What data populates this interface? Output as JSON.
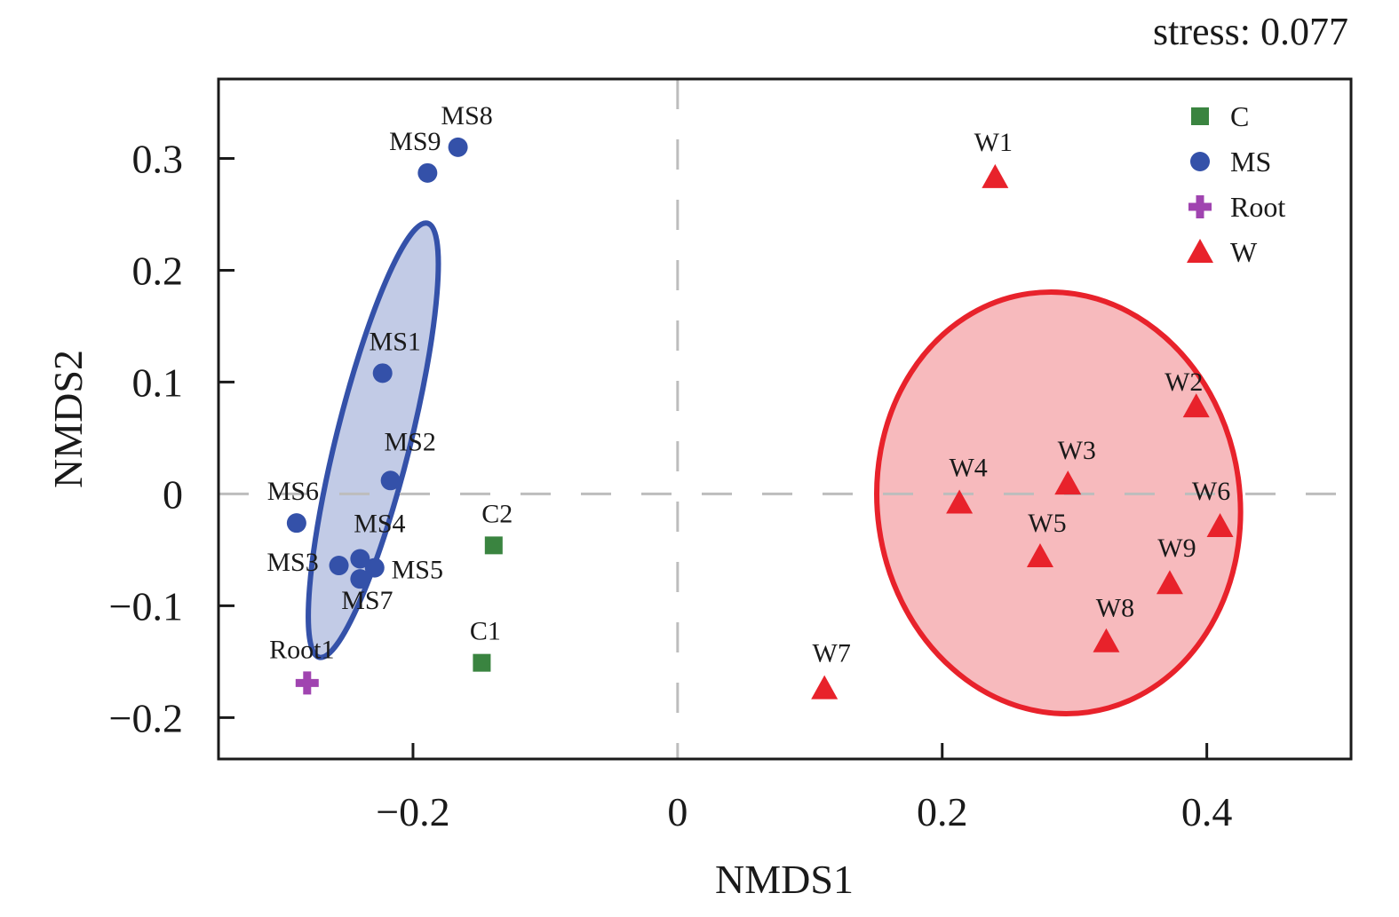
{
  "chart_data": {
    "type": "scatter",
    "title": "",
    "annotation": "stress: 0.077",
    "xlabel": "NMDS1",
    "ylabel": "NMDS2",
    "xlim": [
      -0.347,
      0.509
    ],
    "ylim": [
      -0.237,
      0.371
    ],
    "xticks": [
      -0.2,
      0,
      0.2,
      0.4
    ],
    "xtick_labels": [
      "−0.2",
      "0",
      "0.2",
      "0.4"
    ],
    "yticks": [
      -0.2,
      -0.1,
      0,
      0.1,
      0.2,
      0.3
    ],
    "ytick_labels": [
      "−0.2",
      "−0.1",
      "0",
      "0.1",
      "0.2",
      "0.3"
    ],
    "reference_lines": {
      "x": 0,
      "y": 0,
      "style": "dashed"
    },
    "grid": false,
    "legend_position": "top-right",
    "groups": [
      {
        "name": "C",
        "marker": "square",
        "color": "#3a8440"
      },
      {
        "name": "MS",
        "marker": "circle",
        "color": "#3451a9"
      },
      {
        "name": "Root",
        "marker": "plus",
        "color": "#a044b0"
      },
      {
        "name": "W",
        "marker": "triangle",
        "color": "#e8222b"
      }
    ],
    "series": [
      {
        "name": "C",
        "points": [
          {
            "label": "C1",
            "x": -0.148,
            "y": -0.151
          },
          {
            "label": "C2",
            "x": -0.139,
            "y": -0.046
          }
        ]
      },
      {
        "name": "MS",
        "points": [
          {
            "label": "MS1",
            "x": -0.223,
            "y": 0.108
          },
          {
            "label": "MS2",
            "x": -0.217,
            "y": 0.012
          },
          {
            "label": "MS3",
            "x": -0.256,
            "y": -0.064
          },
          {
            "label": "MS4",
            "x": -0.24,
            "y": -0.058
          },
          {
            "label": "MS5",
            "x": -0.229,
            "y": -0.066
          },
          {
            "label": "MS6",
            "x": -0.288,
            "y": -0.026
          },
          {
            "label": "MS7",
            "x": -0.24,
            "y": -0.076
          },
          {
            "label": "MS8",
            "x": -0.166,
            "y": 0.31
          },
          {
            "label": "MS9",
            "x": -0.189,
            "y": 0.287
          }
        ]
      },
      {
        "name": "Root",
        "points": [
          {
            "label": "Root1",
            "x": -0.28,
            "y": -0.169
          }
        ]
      },
      {
        "name": "W",
        "points": [
          {
            "label": "W1",
            "x": 0.24,
            "y": 0.283
          },
          {
            "label": "W2",
            "x": 0.392,
            "y": 0.078
          },
          {
            "label": "W3",
            "x": 0.295,
            "y": 0.009
          },
          {
            "label": "W4",
            "x": 0.213,
            "y": -0.008
          },
          {
            "label": "W5",
            "x": 0.274,
            "y": -0.056
          },
          {
            "label": "W6",
            "x": 0.41,
            "y": -0.029
          },
          {
            "label": "W7",
            "x": 0.111,
            "y": -0.174
          },
          {
            "label": "W8",
            "x": 0.324,
            "y": -0.132
          },
          {
            "label": "W9",
            "x": 0.372,
            "y": -0.08
          }
        ]
      }
    ],
    "ellipses": [
      {
        "group": "MS",
        "cx": -0.23,
        "cy": 0.048,
        "semi_major": 0.2,
        "semi_minor": 0.028,
        "angle_deg_from_vertical": 14,
        "stroke": "#3451a9",
        "fill": "#c2cbe6"
      },
      {
        "group": "W",
        "cx": 0.288,
        "cy": -0.008,
        "semi_major": 0.189,
        "semi_minor": 0.137,
        "angle_deg_from_vertical": -8,
        "stroke": "#e8222b",
        "fill": "#f7babd"
      }
    ]
  }
}
